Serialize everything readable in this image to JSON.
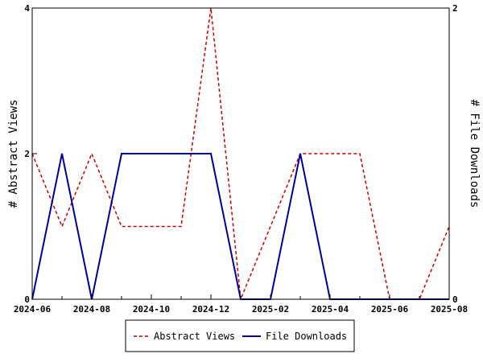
{
  "chart_data": {
    "type": "line",
    "x": [
      "2024-06",
      "2024-07",
      "2024-08",
      "2024-09",
      "2024-10",
      "2024-11",
      "2024-12",
      "2025-01",
      "2025-02",
      "2025-03",
      "2025-04",
      "2025-05",
      "2025-06",
      "2025-07",
      "2025-08"
    ],
    "x_tick_labels": [
      "2024-06",
      "2024-08",
      "2024-10",
      "2024-12",
      "2025-02",
      "2025-04",
      "2025-06",
      "2025-08"
    ],
    "series": [
      {
        "name": "Abstract Views",
        "axis": "left",
        "color": "#cc0000",
        "dash": "dashed",
        "values": [
          2,
          1,
          2,
          1,
          1,
          1,
          4,
          0,
          1,
          2,
          2,
          2,
          0,
          0,
          1
        ]
      },
      {
        "name": "File Downloads",
        "axis": "right",
        "color": "#000099",
        "dash": "solid",
        "values": [
          0,
          1,
          0,
          1,
          1,
          1,
          1,
          0,
          0,
          1,
          0,
          0,
          0,
          0,
          0
        ]
      }
    ],
    "ylabel": "# Abstract Views",
    "y2label": "# File Downloads",
    "ylim": [
      0,
      4
    ],
    "y2lim": [
      0,
      2
    ],
    "y_ticks": [
      "0",
      "2",
      "4"
    ],
    "y2_ticks": [
      "0",
      "2"
    ],
    "grid": false,
    "legend_position": "bottom"
  }
}
